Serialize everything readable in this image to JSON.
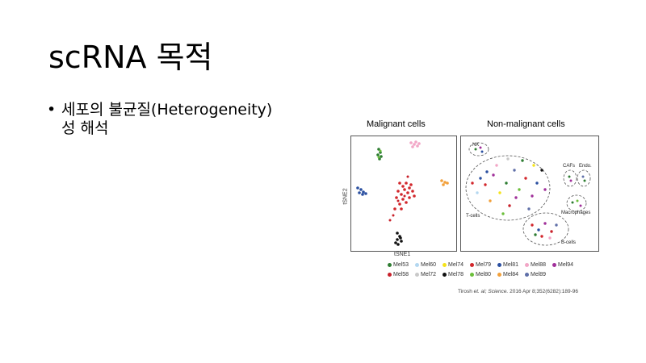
{
  "slide": {
    "title": "scRNA 목적",
    "bullet": "세포의 불균질(Heterogeneity)\n성 해석"
  },
  "figure": {
    "left_panel_title": "Malignant cells",
    "right_panel_title": "Non-malignant cells",
    "x_axis_label": "tSNE1",
    "y_axis_label": "tSNE2",
    "cluster_labels": {
      "nk": "NK",
      "tcells": "T-cells",
      "cafs": "CAFs",
      "endo": "Endo.",
      "macrophages": "Macrophages",
      "bcells": "B-cells"
    },
    "legend": [
      {
        "label": "Mel53",
        "color": "#2e7d32"
      },
      {
        "label": "Mel60",
        "color": "#b3d7f0"
      },
      {
        "label": "Mel74",
        "color": "#f5e31a"
      },
      {
        "label": "Mel79",
        "color": "#d2272c"
      },
      {
        "label": "Mel81",
        "color": "#2a4fa0"
      },
      {
        "label": "Mel88",
        "color": "#f2a6c6"
      },
      {
        "label": "Mel94",
        "color": "#a0309a"
      },
      {
        "label": "Mel58",
        "color": "#c8202a"
      },
      {
        "label": "Mel72",
        "color": "#c9c9c9"
      },
      {
        "label": "Mel78",
        "color": "#111111"
      },
      {
        "label": "Mel80",
        "color": "#6cbf3c"
      },
      {
        "label": "Mel84",
        "color": "#f2a03a"
      },
      {
        "label": "Mel89",
        "color": "#5f6fa8"
      }
    ],
    "citation_authors": "Tirosh",
    "citation_etal": "et. al;",
    "citation_journal": "Science.",
    "citation_ref": "2016 Apr 8;352(6282):189-96"
  }
}
